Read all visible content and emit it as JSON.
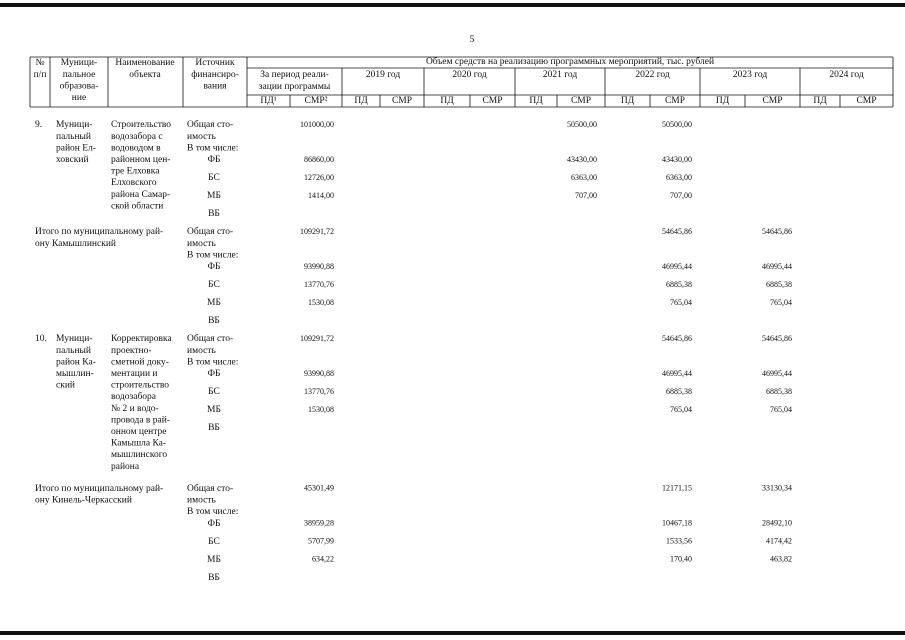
{
  "page_number": "5",
  "header": {
    "number": [
      "№",
      "п/п"
    ],
    "municipality": [
      "Муници-",
      "пальное",
      "образова-",
      "ние"
    ],
    "object": [
      "Наименование",
      "объекта"
    ],
    "source": [
      "Источник",
      "финансиро-",
      "вания"
    ],
    "volume": "Объем средств на реализацию программных мероприятий, тыс. рублей",
    "periods": [
      [
        "За период реали-",
        "зации программы"
      ],
      [
        "2019 год"
      ],
      [
        "2020 год"
      ],
      [
        "2021 год"
      ],
      [
        "2022 год"
      ],
      [
        "2023 год"
      ],
      [
        "2024 год"
      ]
    ],
    "subheaders": [
      "ПД¹",
      "СМР²",
      "ПД",
      "СМР",
      "ПД",
      "СМР",
      "ПД",
      "СМР",
      "ПД",
      "СМР",
      "ПД",
      "СМР",
      "ПД",
      "СМР"
    ]
  },
  "blocks": [
    {
      "number": "9.",
      "municipality": [
        "Муници-",
        "пальный",
        "район Ел-",
        "ховский"
      ],
      "object": [
        "Строительство",
        "водозабора с",
        "водоводом в",
        "районном цен-",
        "тре Елховка",
        "Елховского",
        "района Самар-",
        "ской области"
      ],
      "sources": [
        {
          "label": [
            "Общая сто-",
            "имость"
          ],
          "smr": [
            "101000,00",
            null,
            null,
            "50500,00",
            "50500,00",
            null,
            null
          ]
        },
        {
          "label": [
            "В том числе:"
          ]
        },
        {
          "label": [
            "ФБ"
          ],
          "smr": [
            "86860,00",
            null,
            null,
            "43430,00",
            "43430,00",
            null,
            null
          ]
        },
        {
          "label": [
            "БС"
          ],
          "smr": [
            "12726,00",
            null,
            null,
            "6363,00",
            "6363,00",
            null,
            null
          ]
        },
        {
          "label": [
            "МБ"
          ],
          "smr": [
            "1414,00",
            null,
            null,
            "707,00",
            "707,00",
            null,
            null
          ]
        },
        {
          "label": [
            "ВБ"
          ]
        }
      ]
    },
    {
      "title": [
        "Итого по муниципальному рай-",
        "ону Камышлинский"
      ],
      "sources": [
        {
          "label": [
            "Общая сто-",
            "имость"
          ],
          "smr": [
            "109291,72",
            null,
            null,
            null,
            "54645,86",
            "54645,86",
            null
          ]
        },
        {
          "label": [
            "В том числе:"
          ]
        },
        {
          "label": [
            "ФБ"
          ],
          "smr": [
            "93990,88",
            null,
            null,
            null,
            "46995,44",
            "46995,44",
            null
          ]
        },
        {
          "label": [
            "БС"
          ],
          "smr": [
            "13770,76",
            null,
            null,
            null,
            "6885,38",
            "6885,38",
            null
          ]
        },
        {
          "label": [
            "МБ"
          ],
          "smr": [
            "1530,08",
            null,
            null,
            null,
            "765,04",
            "765,04",
            null
          ]
        },
        {
          "label": [
            "ВБ"
          ]
        }
      ]
    },
    {
      "number": "10.",
      "municipality": [
        "Муници-",
        "пальный",
        "район Ка-",
        "мышлин-",
        "ский"
      ],
      "object": [
        "Корректировка",
        "проектно-",
        "сметной доку-",
        "ментации и",
        "строительство",
        "водозабора",
        "№ 2 и водо-",
        "провода в рай-",
        "онном центре",
        "Камышла Ка-",
        "мышлинского",
        "района"
      ],
      "sources": [
        {
          "label": [
            "Общая сто-",
            "имость"
          ],
          "smr": [
            "109291,72",
            null,
            null,
            null,
            "54645,86",
            "54645,86",
            null
          ]
        },
        {
          "label": [
            "В том числе:"
          ]
        },
        {
          "label": [
            "ФБ"
          ],
          "smr": [
            "93990,88",
            null,
            null,
            null,
            "46995,44",
            "46995,44",
            null
          ]
        },
        {
          "label": [
            "БС"
          ],
          "smr": [
            "13770,76",
            null,
            null,
            null,
            "6885,38",
            "6885,38",
            null
          ]
        },
        {
          "label": [
            "МБ"
          ],
          "smr": [
            "1530,08",
            null,
            null,
            null,
            "765,04",
            "765,04",
            null
          ]
        },
        {
          "label": [
            "ВБ"
          ]
        }
      ]
    },
    {
      "title": [
        "Итого по муниципальному рай-",
        "ону Кинель-Черкасский"
      ],
      "sources": [
        {
          "label": [
            "Общая сто-",
            "имость"
          ],
          "smr": [
            "45301,49",
            null,
            null,
            null,
            "12171,15",
            "33130,34",
            null
          ]
        },
        {
          "label": [
            "В том числе:"
          ]
        },
        {
          "label": [
            "ФБ"
          ],
          "smr": [
            "38959,28",
            null,
            null,
            null,
            "10467,18",
            "28492,10",
            null
          ]
        },
        {
          "label": [
            "БС"
          ],
          "smr": [
            "5707,99",
            null,
            null,
            null,
            "1533,56",
            "4174,42",
            null
          ]
        },
        {
          "label": [
            "МБ"
          ],
          "smr": [
            "634,22",
            null,
            null,
            null,
            "170,40",
            "463,82",
            null
          ]
        },
        {
          "label": [
            "ВБ"
          ]
        }
      ]
    }
  ]
}
